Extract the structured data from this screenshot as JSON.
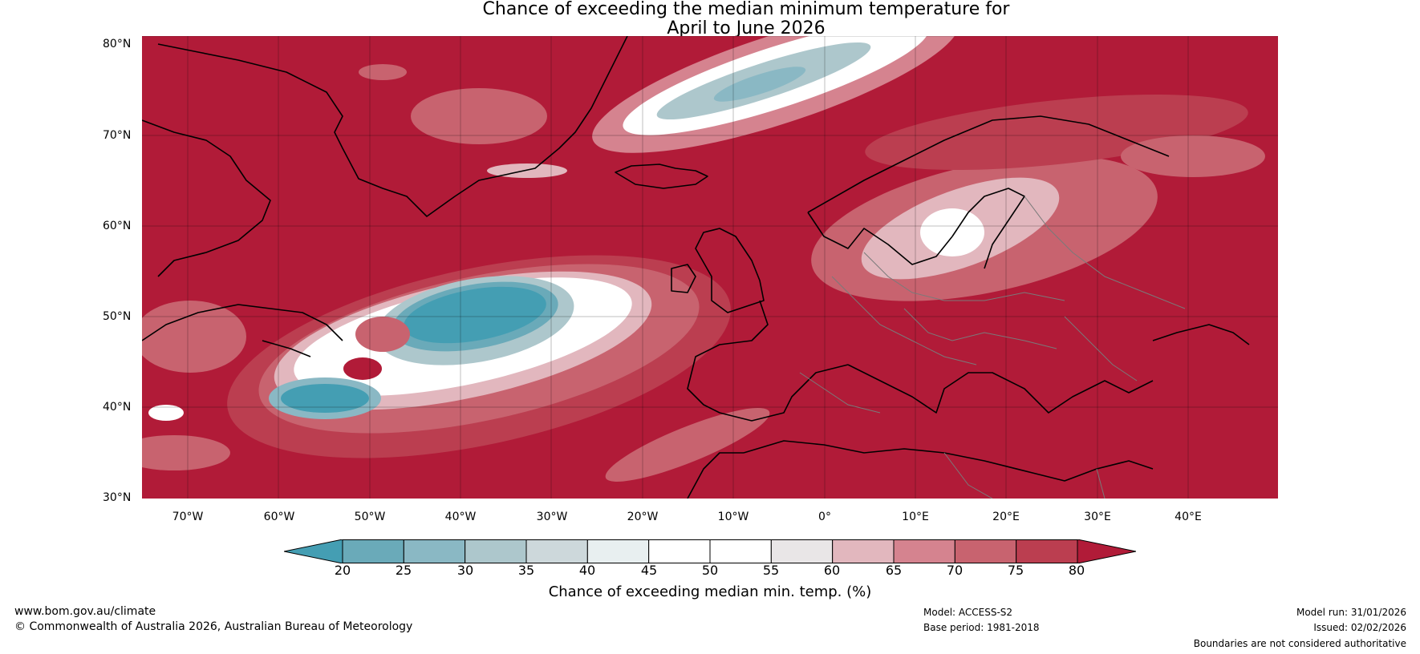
{
  "title": {
    "line1": "Chance of exceeding the median minimum temperature for",
    "line2": "April to June 2026"
  },
  "map": {
    "region": "North Atlantic and Europe",
    "background_colour": "#B11B38",
    "latitude_labels": [
      "80°N",
      "70°N",
      "60°N",
      "50°N",
      "40°N",
      "30°N"
    ],
    "longitude_labels": [
      "70°W",
      "60°W",
      "50°W",
      "40°W",
      "30°W",
      "20°W",
      "10°W",
      "0°",
      "10°E",
      "20°E",
      "30°E",
      "40°E"
    ]
  },
  "legend": {
    "ticks": [
      "20",
      "25",
      "30",
      "35",
      "40",
      "45",
      "50",
      "55",
      "60",
      "65",
      "70",
      "75",
      "80"
    ],
    "colors": [
      "#449EB3",
      "#6AAAB9",
      "#8AB8C4",
      "#ADC7CC",
      "#CDD8DB",
      "#E8EFF0",
      "#FFFFFF",
      "#FFFFFF",
      "#E9E6E7",
      "#E2B7BE",
      "#D5838F",
      "#C8636F",
      "#BB3E50",
      "#B11B38"
    ],
    "label": "Chance of exceeding median min. temp. (%)"
  },
  "footer": {
    "website": "www.bom.gov.au/climate",
    "copyright": "© Commonwealth of Australia 2026, Australian Bureau of Meteorology",
    "model": "Model: ACCESS-S2",
    "base_period": "Base period: 1981-2018",
    "model_run": "Model run: 31/01/2026",
    "issued": "Issued: 02/02/2026",
    "disclaimer": "Boundaries are not considered authoritative"
  }
}
